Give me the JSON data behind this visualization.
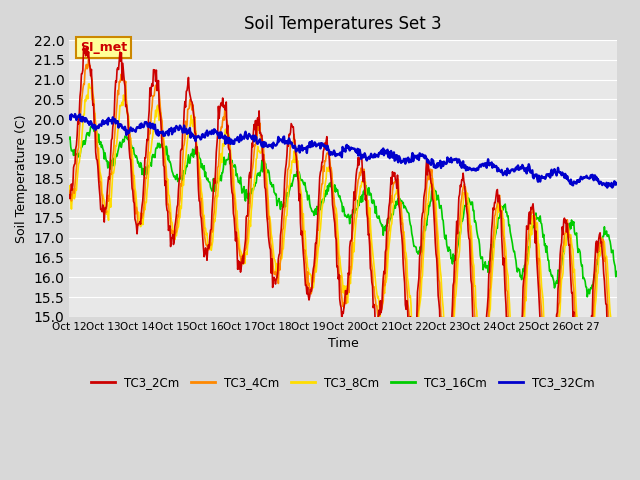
{
  "title": "Soil Temperatures Set 3",
  "xlabel": "Time",
  "ylabel": "Soil Temperature (C)",
  "ylim": [
    15.0,
    22.0
  ],
  "xtick_labels": [
    "Oct 12",
    "Oct 13",
    "Oct 14",
    "Oct 15",
    "Oct 16",
    "Oct 17",
    "Oct 18",
    "Oct 19",
    "Oct 20",
    "Oct 21",
    "Oct 22",
    "Oct 23",
    "Oct 24",
    "Oct 25",
    "Oct 26",
    "Oct 27"
  ],
  "series_colors": [
    "#cc0000",
    "#ff8800",
    "#ffdd00",
    "#00cc00",
    "#0000cc"
  ],
  "series_names": [
    "TC3_2Cm",
    "TC3_4Cm",
    "TC3_8Cm",
    "TC3_16Cm",
    "TC3_32Cm"
  ],
  "annotation_text": "SI_met",
  "annotation_bg": "#ffff99",
  "annotation_border": "#cc8800"
}
